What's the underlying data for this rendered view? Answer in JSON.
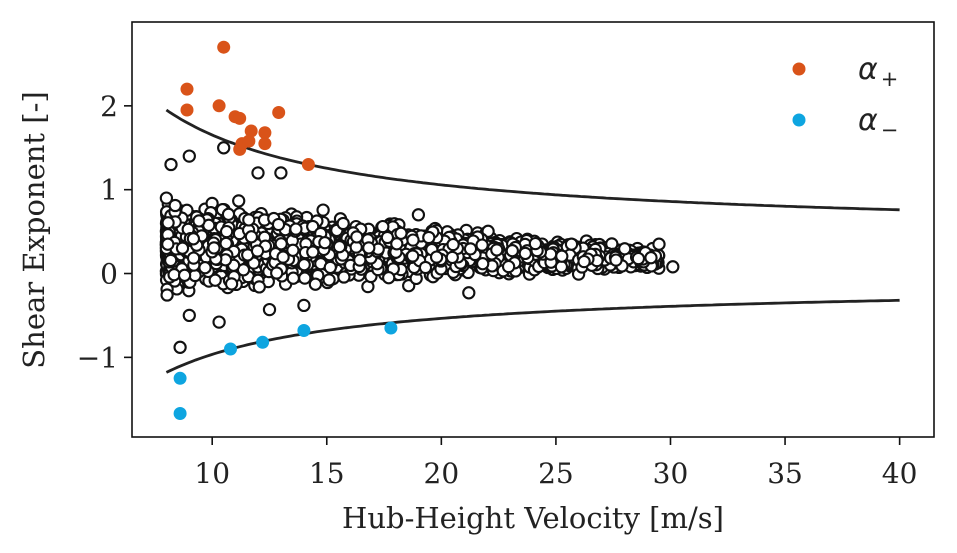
{
  "chart_data": {
    "type": "scatter",
    "xlabel": "Hub-Height Velocity [m/s]",
    "ylabel": "Shear Exponent [-]",
    "xlim": [
      6.5,
      41.5
    ],
    "ylim": [
      -1.95,
      3.0
    ],
    "xticks": [
      10,
      15,
      20,
      25,
      30,
      35,
      40
    ],
    "yticks": [
      -1,
      0,
      1,
      2
    ],
    "xtick_labels": [
      "10",
      "15",
      "20",
      "25",
      "30",
      "35",
      "40"
    ],
    "ytick_labels": [
      "−1",
      "0",
      "1",
      "2"
    ],
    "grid": false,
    "legend_position": "top-right",
    "legend": [
      {
        "label": "α",
        "subscript": "+",
        "color": "#d95319"
      },
      {
        "label": "α",
        "subscript": "−",
        "color": "#0ea5e0"
      }
    ],
    "series": [
      {
        "name": "alpha_plus",
        "color": "#d95319",
        "points": [
          [
            10.5,
            2.7
          ],
          [
            8.9,
            2.2
          ],
          [
            8.9,
            1.95
          ],
          [
            10.3,
            2.0
          ],
          [
            11.0,
            1.87
          ],
          [
            11.2,
            1.85
          ],
          [
            12.9,
            1.92
          ],
          [
            11.7,
            1.7
          ],
          [
            12.3,
            1.68
          ],
          [
            11.3,
            1.55
          ],
          [
            11.6,
            1.58
          ],
          [
            12.3,
            1.55
          ],
          [
            11.2,
            1.48
          ],
          [
            14.2,
            1.3
          ]
        ]
      },
      {
        "name": "alpha_minus",
        "color": "#0ea5e0",
        "points": [
          [
            8.6,
            -1.25
          ],
          [
            8.6,
            -1.67
          ],
          [
            10.8,
            -0.9
          ],
          [
            12.2,
            -0.82
          ],
          [
            14.0,
            -0.68
          ],
          [
            17.8,
            -0.65
          ]
        ]
      },
      {
        "name": "measurements",
        "color": "#ffffff",
        "edge_color": "#111111",
        "envelope_description": "dense cloud of roughly 3000 open-circle samples spanning 8 to 30 m/s",
        "points_sample": [
          [
            8.0,
            0.9
          ],
          [
            8.2,
            1.3
          ],
          [
            9.0,
            1.4
          ],
          [
            10.5,
            1.5
          ],
          [
            12.0,
            1.2
          ],
          [
            13.0,
            1.2
          ],
          [
            19.0,
            0.7
          ],
          [
            29.5,
            0.35
          ],
          [
            30.1,
            0.08
          ],
          [
            8.6,
            -0.88
          ],
          [
            9.0,
            -0.5
          ],
          [
            10.3,
            -0.58
          ],
          [
            12.5,
            -0.43
          ],
          [
            14.0,
            -0.38
          ],
          [
            21.2,
            -0.23
          ]
        ]
      }
    ],
    "bounds": [
      {
        "name": "upper",
        "x_start": 8.0,
        "x_end": 40.0,
        "y_start": 1.95,
        "y_end": 0.76
      },
      {
        "name": "lower",
        "x_start": 8.0,
        "x_end": 40.0,
        "y_start": -1.18,
        "y_end": -0.32
      }
    ]
  }
}
